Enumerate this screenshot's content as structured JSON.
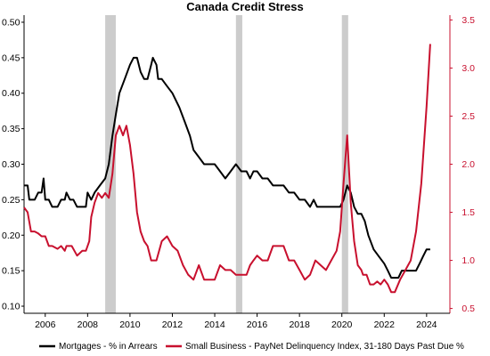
{
  "chart_data": {
    "type": "line",
    "title": "Canada Credit Stress",
    "xlim": [
      2005.0,
      2025.1
    ],
    "x_ticks": [
      "2006",
      "2008",
      "2010",
      "2012",
      "2014",
      "2016",
      "2018",
      "2020",
      "2022",
      "2024"
    ],
    "y_left": {
      "lim": [
        0.09,
        0.51
      ],
      "ticks": [
        "0.10",
        "0.15",
        "0.20",
        "0.25",
        "0.30",
        "0.35",
        "0.40",
        "0.45",
        "0.50"
      ]
    },
    "y_right": {
      "lim": [
        0.45,
        3.55
      ],
      "ticks": [
        "0.5",
        "1.0",
        "1.5",
        "2.0",
        "2.5",
        "3.0",
        "3.5"
      ]
    },
    "recession_bands": [
      [
        2008.83,
        2009.33
      ],
      [
        2015.0,
        2015.3
      ],
      [
        2020.0,
        2020.3
      ]
    ],
    "grid": false,
    "legend_position": "bottom",
    "colors": {
      "mortgages": "#000000",
      "small_business": "#C8102E",
      "recession": "#CCCCCC"
    },
    "series": [
      {
        "name": "Mortgages - % in Arrears",
        "axis": "left",
        "color": "#000000",
        "points": [
          [
            2005.0,
            0.27
          ],
          [
            2005.17,
            0.27
          ],
          [
            2005.25,
            0.25
          ],
          [
            2005.5,
            0.25
          ],
          [
            2005.67,
            0.26
          ],
          [
            2005.83,
            0.26
          ],
          [
            2005.92,
            0.28
          ],
          [
            2006.0,
            0.25
          ],
          [
            2006.17,
            0.25
          ],
          [
            2006.33,
            0.24
          ],
          [
            2006.58,
            0.24
          ],
          [
            2006.75,
            0.25
          ],
          [
            2006.92,
            0.25
          ],
          [
            2007.0,
            0.26
          ],
          [
            2007.17,
            0.25
          ],
          [
            2007.33,
            0.25
          ],
          [
            2007.5,
            0.24
          ],
          [
            2007.75,
            0.24
          ],
          [
            2007.92,
            0.24
          ],
          [
            2008.0,
            0.26
          ],
          [
            2008.17,
            0.25
          ],
          [
            2008.33,
            0.26
          ],
          [
            2008.58,
            0.27
          ],
          [
            2008.83,
            0.28
          ],
          [
            2009.0,
            0.3
          ],
          [
            2009.17,
            0.34
          ],
          [
            2009.33,
            0.37
          ],
          [
            2009.5,
            0.4
          ],
          [
            2009.75,
            0.42
          ],
          [
            2010.0,
            0.44
          ],
          [
            2010.17,
            0.45
          ],
          [
            2010.33,
            0.45
          ],
          [
            2010.5,
            0.43
          ],
          [
            2010.67,
            0.42
          ],
          [
            2010.83,
            0.42
          ],
          [
            2011.0,
            0.44
          ],
          [
            2011.08,
            0.45
          ],
          [
            2011.25,
            0.44
          ],
          [
            2011.33,
            0.42
          ],
          [
            2011.5,
            0.42
          ],
          [
            2011.75,
            0.41
          ],
          [
            2012.0,
            0.4
          ],
          [
            2012.33,
            0.38
          ],
          [
            2012.58,
            0.36
          ],
          [
            2012.83,
            0.34
          ],
          [
            2013.0,
            0.32
          ],
          [
            2013.25,
            0.31
          ],
          [
            2013.5,
            0.3
          ],
          [
            2013.75,
            0.3
          ],
          [
            2014.0,
            0.3
          ],
          [
            2014.25,
            0.29
          ],
          [
            2014.5,
            0.28
          ],
          [
            2014.75,
            0.29
          ],
          [
            2015.0,
            0.3
          ],
          [
            2015.25,
            0.29
          ],
          [
            2015.5,
            0.29
          ],
          [
            2015.67,
            0.28
          ],
          [
            2015.83,
            0.29
          ],
          [
            2016.0,
            0.29
          ],
          [
            2016.25,
            0.28
          ],
          [
            2016.5,
            0.28
          ],
          [
            2016.75,
            0.27
          ],
          [
            2017.0,
            0.27
          ],
          [
            2017.25,
            0.27
          ],
          [
            2017.5,
            0.26
          ],
          [
            2017.75,
            0.26
          ],
          [
            2018.0,
            0.25
          ],
          [
            2018.25,
            0.25
          ],
          [
            2018.5,
            0.24
          ],
          [
            2018.67,
            0.25
          ],
          [
            2018.83,
            0.24
          ],
          [
            2019.0,
            0.24
          ],
          [
            2019.25,
            0.24
          ],
          [
            2019.5,
            0.24
          ],
          [
            2019.75,
            0.24
          ],
          [
            2019.92,
            0.24
          ],
          [
            2020.08,
            0.25
          ],
          [
            2020.25,
            0.27
          ],
          [
            2020.42,
            0.26
          ],
          [
            2020.58,
            0.24
          ],
          [
            2020.75,
            0.23
          ],
          [
            2020.92,
            0.23
          ],
          [
            2021.08,
            0.22
          ],
          [
            2021.25,
            0.2
          ],
          [
            2021.5,
            0.18
          ],
          [
            2021.75,
            0.17
          ],
          [
            2022.0,
            0.16
          ],
          [
            2022.17,
            0.15
          ],
          [
            2022.33,
            0.14
          ],
          [
            2022.5,
            0.14
          ],
          [
            2022.67,
            0.14
          ],
          [
            2022.83,
            0.15
          ],
          [
            2023.0,
            0.15
          ],
          [
            2023.17,
            0.15
          ],
          [
            2023.5,
            0.15
          ],
          [
            2023.67,
            0.16
          ],
          [
            2023.83,
            0.17
          ],
          [
            2024.0,
            0.18
          ],
          [
            2024.17,
            0.18
          ]
        ]
      },
      {
        "name": "Small Business - PayNet Delinquency Index, 31-180 Days Past Due %",
        "axis": "right",
        "color": "#C8102E",
        "points": [
          [
            2005.0,
            1.55
          ],
          [
            2005.17,
            1.5
          ],
          [
            2005.33,
            1.3
          ],
          [
            2005.5,
            1.3
          ],
          [
            2005.67,
            1.28
          ],
          [
            2005.83,
            1.25
          ],
          [
            2006.0,
            1.25
          ],
          [
            2006.17,
            1.15
          ],
          [
            2006.33,
            1.15
          ],
          [
            2006.58,
            1.12
          ],
          [
            2006.75,
            1.15
          ],
          [
            2006.92,
            1.1
          ],
          [
            2007.0,
            1.15
          ],
          [
            2007.25,
            1.15
          ],
          [
            2007.5,
            1.05
          ],
          [
            2007.75,
            1.1
          ],
          [
            2007.92,
            1.1
          ],
          [
            2008.0,
            1.15
          ],
          [
            2008.08,
            1.2
          ],
          [
            2008.17,
            1.45
          ],
          [
            2008.33,
            1.6
          ],
          [
            2008.5,
            1.7
          ],
          [
            2008.67,
            1.65
          ],
          [
            2008.83,
            1.7
          ],
          [
            2009.0,
            1.65
          ],
          [
            2009.17,
            1.9
          ],
          [
            2009.33,
            2.3
          ],
          [
            2009.5,
            2.4
          ],
          [
            2009.67,
            2.3
          ],
          [
            2009.83,
            2.4
          ],
          [
            2010.0,
            2.2
          ],
          [
            2010.17,
            1.9
          ],
          [
            2010.33,
            1.5
          ],
          [
            2010.5,
            1.3
          ],
          [
            2010.67,
            1.2
          ],
          [
            2010.83,
            1.15
          ],
          [
            2011.0,
            1.0
          ],
          [
            2011.25,
            1.0
          ],
          [
            2011.5,
            1.2
          ],
          [
            2011.75,
            1.25
          ],
          [
            2012.0,
            1.15
          ],
          [
            2012.25,
            1.1
          ],
          [
            2012.5,
            0.95
          ],
          [
            2012.75,
            0.85
          ],
          [
            2013.0,
            0.8
          ],
          [
            2013.25,
            0.95
          ],
          [
            2013.5,
            0.8
          ],
          [
            2013.75,
            0.8
          ],
          [
            2014.0,
            0.8
          ],
          [
            2014.25,
            0.95
          ],
          [
            2014.5,
            0.9
          ],
          [
            2014.75,
            0.9
          ],
          [
            2015.0,
            0.85
          ],
          [
            2015.25,
            0.85
          ],
          [
            2015.5,
            0.85
          ],
          [
            2015.67,
            0.95
          ],
          [
            2015.83,
            1.0
          ],
          [
            2016.0,
            1.05
          ],
          [
            2016.25,
            1.0
          ],
          [
            2016.5,
            1.0
          ],
          [
            2016.75,
            1.15
          ],
          [
            2017.0,
            1.15
          ],
          [
            2017.25,
            1.15
          ],
          [
            2017.5,
            1.0
          ],
          [
            2017.75,
            1.0
          ],
          [
            2018.0,
            0.9
          ],
          [
            2018.25,
            0.8
          ],
          [
            2018.5,
            0.85
          ],
          [
            2018.75,
            1.0
          ],
          [
            2019.0,
            0.95
          ],
          [
            2019.25,
            0.9
          ],
          [
            2019.5,
            1.0
          ],
          [
            2019.75,
            1.1
          ],
          [
            2019.92,
            1.3
          ],
          [
            2020.08,
            1.8
          ],
          [
            2020.25,
            2.3
          ],
          [
            2020.42,
            1.6
          ],
          [
            2020.58,
            1.2
          ],
          [
            2020.75,
            0.95
          ],
          [
            2020.92,
            0.9
          ],
          [
            2021.0,
            0.85
          ],
          [
            2021.17,
            0.85
          ],
          [
            2021.33,
            0.75
          ],
          [
            2021.5,
            0.75
          ],
          [
            2021.67,
            0.78
          ],
          [
            2021.83,
            0.75
          ],
          [
            2022.0,
            0.8
          ],
          [
            2022.17,
            0.75
          ],
          [
            2022.33,
            0.67
          ],
          [
            2022.5,
            0.67
          ],
          [
            2022.75,
            0.8
          ],
          [
            2023.0,
            0.9
          ],
          [
            2023.25,
            1.0
          ],
          [
            2023.5,
            1.3
          ],
          [
            2023.75,
            1.8
          ],
          [
            2024.0,
            2.6
          ],
          [
            2024.17,
            3.25
          ]
        ]
      }
    ]
  }
}
